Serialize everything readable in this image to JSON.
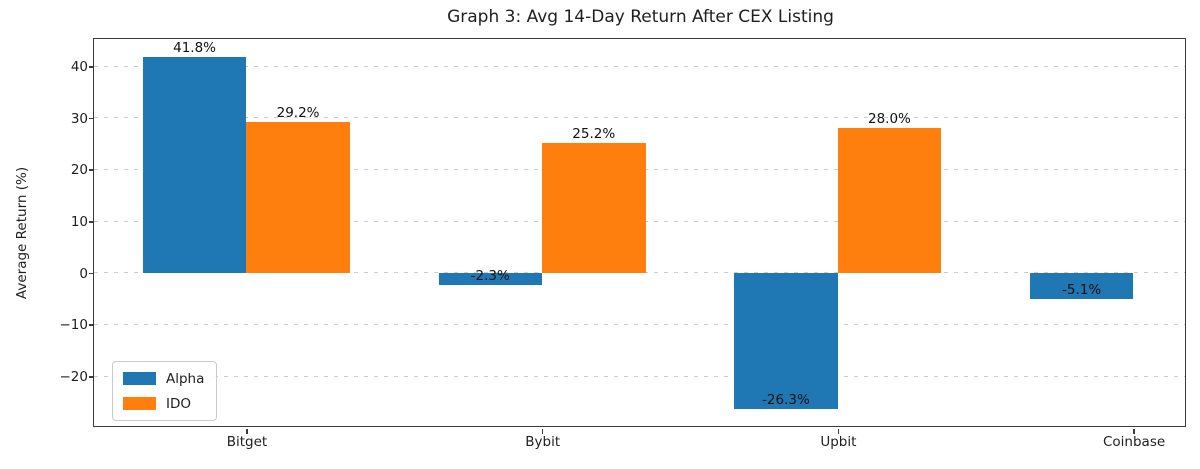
{
  "chart_data": {
    "type": "bar",
    "title": "Graph 3: Avg 14-Day Return After CEX Listing",
    "xlabel": "",
    "ylabel": "Average Return (%)",
    "categories": [
      "Bitget",
      "Bybit",
      "Upbit",
      "Coinbase"
    ],
    "series": [
      {
        "name": "Alpha",
        "color": "#1f77b4",
        "values": [
          41.8,
          -2.3,
          -26.3,
          -5.1
        ]
      },
      {
        "name": "IDO",
        "color": "#ff7f0e",
        "values": [
          29.2,
          25.2,
          28.0,
          null
        ]
      }
    ],
    "value_labels": [
      [
        "41.8%",
        "-2.3%",
        "-26.3%",
        "-5.1%"
      ],
      [
        "29.2%",
        "25.2%",
        "28.0%",
        null
      ]
    ],
    "ylim": [
      -29.7,
      45.2
    ],
    "yticks": [
      -20,
      -10,
      0,
      10,
      20,
      30,
      40
    ],
    "grid": "horizontal-dashed",
    "legend_position": "lower-left",
    "colors": {
      "alpha_blue": "#1f77b4",
      "ido_orange": "#ff7f0e",
      "spine": "#3a3a3a",
      "gridline": "#cdcdcd",
      "text": "#1f1f1f"
    }
  }
}
